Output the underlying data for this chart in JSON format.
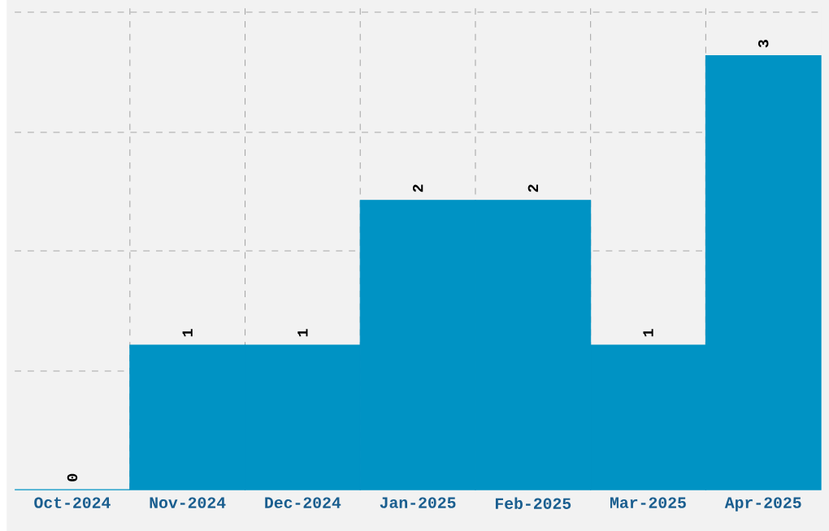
{
  "chart_data": {
    "type": "bar",
    "categories": [
      "Oct-2024",
      "Nov-2024",
      "Dec-2024",
      "Jan-2025",
      "Feb-2025",
      "Mar-2025",
      "Apr-2025"
    ],
    "values": [
      0,
      1,
      1,
      2,
      2,
      1,
      3
    ],
    "color": "#0093c4",
    "ylim": [
      0,
      3.34
    ],
    "yticks": [
      {
        "value": 0.82,
        "label": null
      },
      {
        "value": 1.65,
        "label": null
      },
      {
        "value": 2.47,
        "label": null
      },
      {
        "value": 3.3,
        "label": null
      }
    ],
    "tick_labels": "x",
    "grid": true,
    "data_labels": true
  }
}
